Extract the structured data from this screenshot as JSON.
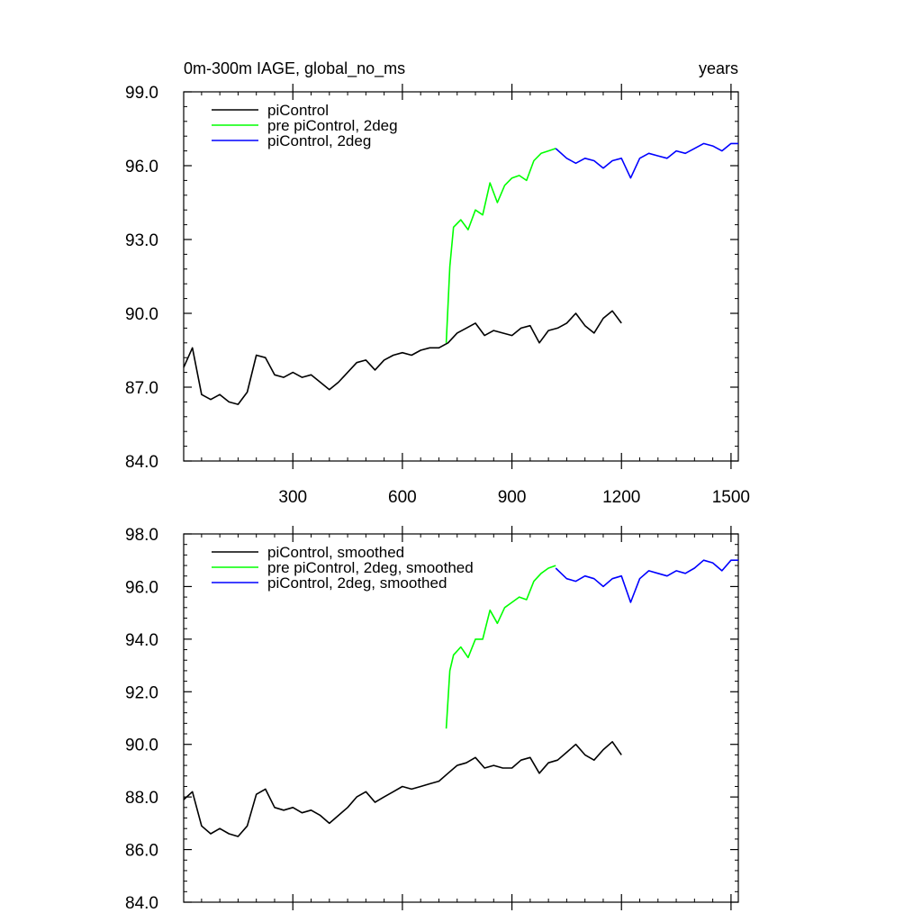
{
  "chart_data": [
    {
      "type": "line",
      "title": "0m-300m IAGE, global_no_ms",
      "units": "years",
      "xlim": [
        1,
        1520
      ],
      "ylim": [
        84.0,
        99.0
      ],
      "xticks": [
        300,
        600,
        900,
        1200,
        1500
      ],
      "yticks": [
        84.0,
        87.0,
        90.0,
        93.0,
        96.0,
        99.0
      ],
      "ytick_labels": [
        "84.0",
        "87.0",
        "90.0",
        "93.0",
        "96.0",
        "99.0"
      ],
      "xtick_labels": [
        "300",
        "600",
        "900",
        "1200",
        "1500"
      ],
      "legend_position": "top-left",
      "series": [
        {
          "name": "piControl",
          "color": "#000000",
          "x": [
            1,
            25,
            50,
            75,
            100,
            125,
            150,
            175,
            200,
            225,
            250,
            275,
            300,
            325,
            350,
            375,
            400,
            425,
            450,
            475,
            500,
            525,
            550,
            575,
            600,
            625,
            650,
            675,
            700,
            725,
            750,
            775,
            800,
            825,
            850,
            875,
            900,
            925,
            950,
            975,
            1000,
            1025,
            1050,
            1075,
            1100,
            1125,
            1150,
            1175,
            1200
          ],
          "y": [
            87.8,
            88.6,
            86.7,
            86.5,
            86.7,
            86.4,
            86.3,
            86.8,
            88.3,
            88.2,
            87.5,
            87.4,
            87.6,
            87.4,
            87.5,
            87.2,
            86.9,
            87.2,
            87.6,
            88.0,
            88.1,
            87.7,
            88.1,
            88.3,
            88.4,
            88.3,
            88.5,
            88.6,
            88.6,
            88.8,
            89.2,
            89.4,
            89.6,
            89.1,
            89.3,
            89.2,
            89.1,
            89.4,
            89.5,
            88.8,
            89.3,
            89.4,
            89.6,
            90.0,
            89.5,
            89.2,
            89.8,
            90.1,
            89.6
          ]
        },
        {
          "name": "pre piControl, 2deg",
          "color": "#00ff00",
          "x": [
            720,
            730,
            740,
            760,
            780,
            800,
            820,
            840,
            860,
            880,
            900,
            920,
            940,
            960,
            980,
            1000,
            1020
          ],
          "y": [
            88.8,
            91.9,
            93.5,
            93.8,
            93.4,
            94.2,
            94.0,
            95.3,
            94.5,
            95.2,
            95.5,
            95.6,
            95.4,
            96.2,
            96.5,
            96.6,
            96.7
          ]
        },
        {
          "name": "piControl, 2deg",
          "color": "#0000ff",
          "x": [
            1020,
            1050,
            1075,
            1100,
            1125,
            1150,
            1175,
            1200,
            1225,
            1250,
            1275,
            1300,
            1325,
            1350,
            1375,
            1400,
            1425,
            1450,
            1475,
            1500,
            1520
          ],
          "y": [
            96.7,
            96.3,
            96.1,
            96.3,
            96.2,
            95.9,
            96.2,
            96.3,
            95.5,
            96.3,
            96.5,
            96.4,
            96.3,
            96.6,
            96.5,
            96.7,
            96.9,
            96.8,
            96.6,
            96.9,
            96.9
          ]
        }
      ]
    },
    {
      "type": "line",
      "xlim": [
        1,
        1520
      ],
      "ylim": [
        84.0,
        98.0
      ],
      "xticks": [
        300,
        600,
        900,
        1200,
        1500
      ],
      "yticks": [
        84.0,
        86.0,
        88.0,
        90.0,
        92.0,
        94.0,
        96.0,
        98.0
      ],
      "ytick_labels": [
        "84.0",
        "86.0",
        "88.0",
        "90.0",
        "92.0",
        "94.0",
        "96.0",
        "98.0"
      ],
      "legend_position": "top-left",
      "series": [
        {
          "name": "piControl, smoothed",
          "color": "#000000",
          "x": [
            1,
            25,
            50,
            75,
            100,
            125,
            150,
            175,
            200,
            225,
            250,
            275,
            300,
            325,
            350,
            375,
            400,
            425,
            450,
            475,
            500,
            525,
            550,
            575,
            600,
            625,
            650,
            675,
            700,
            725,
            750,
            775,
            800,
            825,
            850,
            875,
            900,
            925,
            950,
            975,
            1000,
            1025,
            1050,
            1075,
            1100,
            1125,
            1150,
            1175,
            1200
          ],
          "y": [
            87.9,
            88.2,
            86.9,
            86.6,
            86.8,
            86.6,
            86.5,
            86.9,
            88.1,
            88.3,
            87.6,
            87.5,
            87.6,
            87.4,
            87.5,
            87.3,
            87.0,
            87.3,
            87.6,
            88.0,
            88.2,
            87.8,
            88.0,
            88.2,
            88.4,
            88.3,
            88.4,
            88.5,
            88.6,
            88.9,
            89.2,
            89.3,
            89.5,
            89.1,
            89.2,
            89.1,
            89.1,
            89.4,
            89.5,
            88.9,
            89.3,
            89.4,
            89.7,
            90.0,
            89.6,
            89.4,
            89.8,
            90.1,
            89.6
          ]
        },
        {
          "name": "pre piControl, 2deg, smoothed",
          "color": "#00ff00",
          "x": [
            720,
            730,
            740,
            760,
            780,
            800,
            820,
            840,
            860,
            880,
            900,
            920,
            940,
            960,
            980,
            1000,
            1020
          ],
          "y": [
            90.6,
            92.8,
            93.4,
            93.7,
            93.3,
            94.0,
            94.0,
            95.1,
            94.6,
            95.2,
            95.4,
            95.6,
            95.5,
            96.2,
            96.5,
            96.7,
            96.8
          ]
        },
        {
          "name": "piControl, 2deg, smoothed",
          "color": "#0000ff",
          "x": [
            1020,
            1050,
            1075,
            1100,
            1125,
            1150,
            1175,
            1200,
            1225,
            1250,
            1275,
            1300,
            1325,
            1350,
            1375,
            1400,
            1425,
            1450,
            1475,
            1500,
            1520
          ],
          "y": [
            96.7,
            96.3,
            96.2,
            96.4,
            96.3,
            96.0,
            96.3,
            96.4,
            95.4,
            96.3,
            96.6,
            96.5,
            96.4,
            96.6,
            96.5,
            96.7,
            97.0,
            96.9,
            96.6,
            97.0,
            97.0
          ]
        }
      ]
    }
  ]
}
